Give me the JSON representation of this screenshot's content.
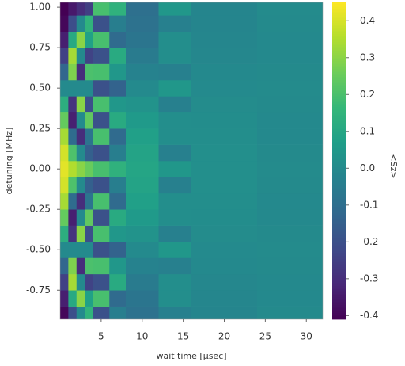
{
  "chart_data": {
    "type": "heatmap",
    "x_label": "wait time [μsec]",
    "y_label": "detuning [MHz]",
    "colorbar_label": "<Sz>",
    "colormap": "viridis",
    "x_bins": [
      0,
      1,
      2,
      3,
      4,
      6,
      8,
      12,
      16,
      24,
      32
    ],
    "y": [
      -0.9,
      -0.8,
      -0.7,
      -0.6,
      -0.5,
      -0.4,
      -0.3,
      -0.2,
      -0.1,
      0,
      0.1,
      0.2,
      0.3,
      0.4,
      0.5,
      0.6,
      0.7,
      0.8,
      0.9,
      1.0
    ],
    "z": [
      [
        -0.395,
        -0.206,
        0,
        0.148,
        -0.196,
        -0.043,
        -0.088,
        -0.036,
        -0.016,
        0.001
      ],
      [
        -0.336,
        0.108,
        0.297,
        0.078,
        0.196,
        -0.113,
        -0.075,
        0.014,
        -0.014,
        -0.003
      ],
      [
        -0.244,
        0.333,
        0,
        -0.239,
        -0.196,
        0.113,
        -0.055,
        0.014,
        -0.01,
        -0.003
      ],
      [
        -0.128,
        0.283,
        -0.297,
        0.203,
        0.196,
        0.043,
        -0.029,
        -0.036,
        -0.005,
        0.001
      ],
      [
        0,
        0,
        0,
        0,
        -0.196,
        -0.14,
        0,
        0.044,
        0,
        0.004
      ],
      [
        0.128,
        -0.283,
        0.297,
        -0.203,
        0.196,
        0.043,
        0.029,
        -0.036,
        0.005,
        0.001
      ],
      [
        0.244,
        -0.333,
        0,
        0.239,
        -0.196,
        0.113,
        0.055,
        0.014,
        0.01,
        -0.003
      ],
      [
        0.336,
        -0.108,
        -0.297,
        -0.078,
        0.196,
        -0.113,
        0.075,
        0.014,
        0.014,
        -0.003
      ],
      [
        0.395,
        0.206,
        0,
        -0.148,
        -0.196,
        -0.043,
        0.088,
        -0.036,
        0.016,
        0.001
      ],
      [
        0.415,
        0.35,
        0.297,
        0.251,
        0.196,
        0.14,
        0.093,
        0.044,
        0.017,
        0.004
      ],
      [
        0.395,
        0.206,
        0,
        -0.148,
        -0.196,
        -0.043,
        0.088,
        -0.036,
        0.016,
        0.001
      ],
      [
        0.336,
        -0.108,
        -0.297,
        -0.078,
        0.196,
        -0.113,
        0.075,
        0.014,
        0.014,
        -0.003
      ],
      [
        0.244,
        -0.333,
        0,
        0.239,
        -0.196,
        0.113,
        0.055,
        0.014,
        0.01,
        -0.003
      ],
      [
        0.128,
        -0.283,
        0.297,
        -0.203,
        0.196,
        0.043,
        0.029,
        -0.036,
        0.005,
        0.001
      ],
      [
        0,
        0,
        0,
        0,
        -0.196,
        -0.14,
        0,
        0.044,
        0,
        0.004
      ],
      [
        -0.128,
        0.283,
        -0.297,
        0.203,
        0.196,
        0.043,
        -0.029,
        -0.036,
        -0.005,
        0.001
      ],
      [
        -0.244,
        0.333,
        0,
        -0.239,
        -0.196,
        0.113,
        -0.055,
        0.014,
        -0.01,
        -0.003
      ],
      [
        -0.336,
        0.108,
        0.297,
        0.078,
        0.196,
        -0.113,
        -0.075,
        0.014,
        -0.014,
        -0.003
      ],
      [
        -0.395,
        -0.206,
        0,
        0.148,
        -0.196,
        -0.043,
        -0.088,
        -0.036,
        -0.016,
        0.001
      ],
      [
        -0.415,
        -0.35,
        -0.297,
        -0.251,
        0.196,
        0.14,
        -0.093,
        0.044,
        -0.017,
        0.004
      ]
    ],
    "xlim": [
      0,
      32
    ],
    "xticks": [
      5,
      10,
      15,
      20,
      25,
      30
    ],
    "ylim": [
      -0.93,
      1.03
    ],
    "yticks": [
      {
        "value": -0.75,
        "label": "-0.75"
      },
      {
        "value": -0.5,
        "label": "-0.50"
      },
      {
        "value": -0.25,
        "label": "-0.25"
      },
      {
        "value": 0,
        "label": "0.00"
      },
      {
        "value": 0.25,
        "label": "0.25"
      },
      {
        "value": 0.5,
        "label": "0.50"
      },
      {
        "value": 0.75,
        "label": "0.75"
      },
      {
        "value": 1.0,
        "label": "1.00"
      }
    ],
    "clim": [
      -0.41,
      0.45
    ],
    "cticks": [
      -0.4,
      -0.3,
      -0.2,
      -0.1,
      {
        "value": 0,
        "label": "0.0"
      },
      0.1,
      0.2,
      0.3,
      0.4
    ]
  }
}
